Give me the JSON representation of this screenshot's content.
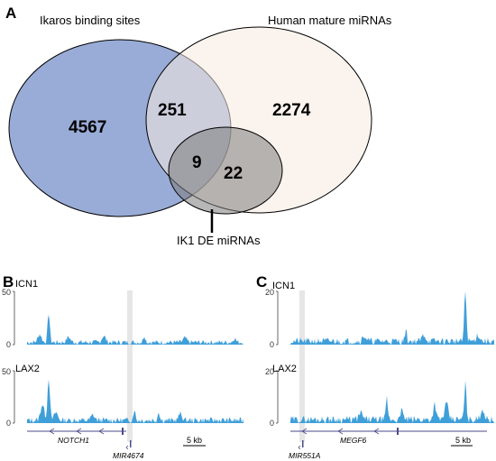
{
  "panels": {
    "A": {
      "letter": "A",
      "sets": {
        "ikaros": "Ikaros binding sites",
        "mirna": "Human mature miRNAs",
        "de": "IK1 DE miRNAs"
      },
      "counts": {
        "ikaros_only": "4567",
        "ikaros_mirna": "251",
        "mirna_only": "2274",
        "all_three": "9",
        "mirna_de": "22"
      },
      "colors": {
        "ikaros": "#8ea3d3",
        "mirna": "#f7ebe0",
        "de": "#7c7c7c"
      }
    },
    "B": {
      "letter": "B",
      "tracks": [
        {
          "name": "ICN1",
          "ymax": "50",
          "ymin": "0"
        },
        {
          "name": "LAX2",
          "ymax": "50",
          "ymin": "0"
        }
      ],
      "genes": {
        "main": "NOTCH1",
        "mirna": "MIR4674"
      },
      "scale": "5 kb"
    },
    "C": {
      "letter": "C",
      "tracks": [
        {
          "name": "ICN1",
          "ymax": "20",
          "ymin": "0"
        },
        {
          "name": "LAX2",
          "ymax": "20",
          "ymin": "0"
        }
      ],
      "genes": {
        "main": "MEGF6",
        "mirna": "MIR551A"
      },
      "scale": "5 kb"
    }
  },
  "colors": {
    "signal": "#3f9fd9",
    "highlight": "#e6e6e6",
    "gene": "#4a4a8a"
  }
}
